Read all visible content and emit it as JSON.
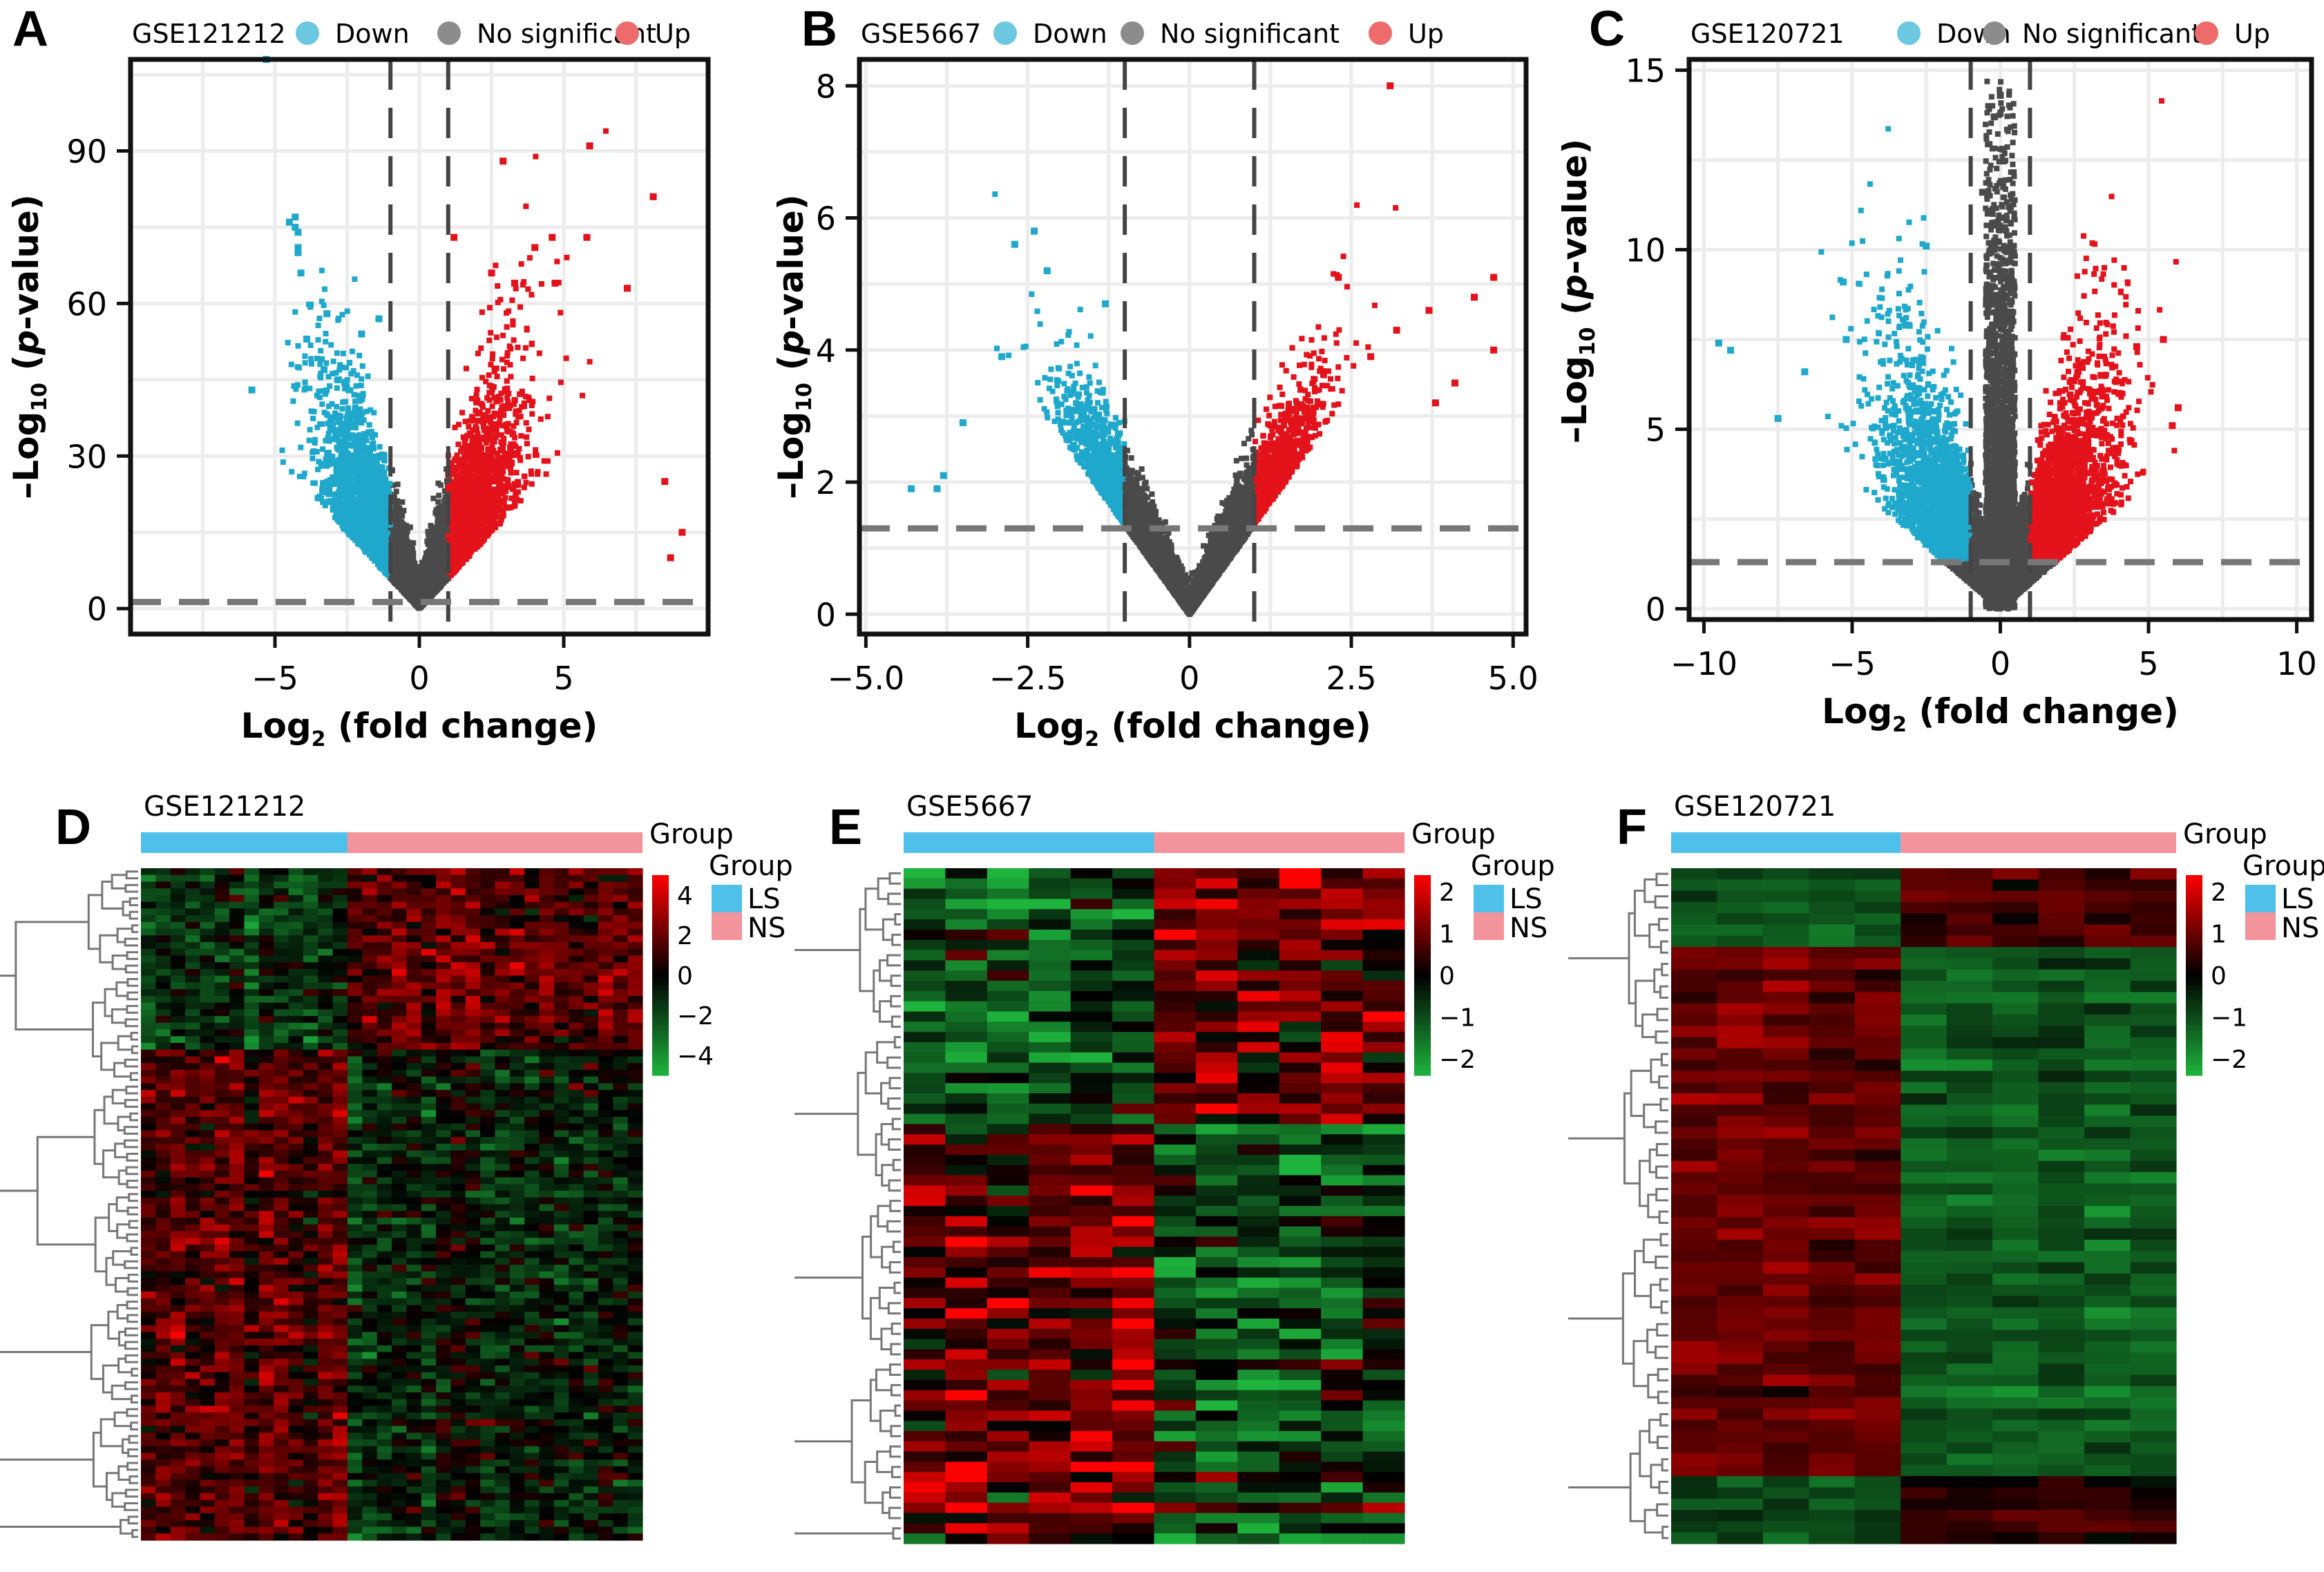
{
  "figure": {
    "panels": [
      "A",
      "B",
      "C",
      "D",
      "E",
      "F"
    ]
  },
  "legend_labels": {
    "down": "Down",
    "nosig": "No significant",
    "up": "Up"
  },
  "colors": {
    "down": "#1fa8cc",
    "nosig": "#4a4a4a",
    "up": "#e3121b",
    "legend_down": "#6cc7e0",
    "legend_nosig": "#8c8c8c",
    "legend_up": "#ee6b6b",
    "group_LS": "#4fc0ea",
    "group_NS": "#f3939c",
    "heat_high": "#ff0000",
    "heat_mid": "#000000",
    "heat_low": "#1db33c"
  },
  "chart_data": [
    {
      "id": "A",
      "type": "scatter",
      "title": "GSE121212",
      "xlabel": "Log2 (fold change)",
      "ylabel": "-Log10 (p-value)",
      "xlim": [
        -10,
        10
      ],
      "ylim": [
        -5,
        108
      ],
      "xticks": [
        -5,
        0,
        5
      ],
      "xtick_labels": [
        "−5",
        "0",
        "5"
      ],
      "yticks": [
        0,
        30,
        60,
        90
      ],
      "ytick_labels": [
        "0",
        "30",
        "60",
        "90"
      ],
      "grid": true,
      "legend": "top",
      "thresholds": {
        "logfc": [
          -1,
          1
        ],
        "neglog10p": 1.3
      },
      "series": [
        {
          "name": "Down",
          "points": [
            [
              -5.3,
              108
            ],
            [
              -4.3,
              77
            ],
            [
              -4.5,
              76
            ],
            [
              -4.3,
              75
            ],
            [
              -4.2,
              74
            ],
            [
              -4.2,
              71
            ],
            [
              -4.2,
              70
            ],
            [
              -4.1,
              66
            ],
            [
              -3.2,
              58
            ],
            [
              -1.4,
              57
            ],
            [
              -5.8,
              43
            ],
            [
              -3.9,
              53
            ],
            [
              -3.3,
              47
            ],
            [
              -2.8,
              45
            ],
            [
              -2.0,
              54
            ]
          ]
        },
        {
          "name": "No significant",
          "points": []
        },
        {
          "name": "Up",
          "points": [
            [
              5.9,
              91
            ],
            [
              2.9,
              88
            ],
            [
              8.1,
              81
            ],
            [
              1.2,
              73
            ],
            [
              4.6,
              73
            ],
            [
              5.8,
              73
            ],
            [
              4.0,
              71
            ],
            [
              2.5,
              66
            ],
            [
              3.3,
              64
            ],
            [
              4.7,
              64
            ],
            [
              7.2,
              63
            ],
            [
              8.5,
              25
            ],
            [
              9.1,
              15
            ],
            [
              8.7,
              10
            ]
          ]
        }
      ]
    },
    {
      "id": "B",
      "type": "scatter",
      "title": "GSE5667",
      "xlabel": "Log2 (fold change)",
      "ylabel": "-Log10 (p-value)",
      "xlim": [
        -5.1,
        5.2
      ],
      "ylim": [
        -0.3,
        8.4
      ],
      "xticks": [
        -5,
        -2.5,
        0,
        2.5,
        5
      ],
      "xtick_labels": [
        "−5.0",
        "−2.5",
        "0",
        "2.5",
        "5.0"
      ],
      "yticks": [
        0,
        2,
        4,
        6,
        8
      ],
      "ytick_labels": [
        "0",
        "2",
        "4",
        "6",
        "8"
      ],
      "grid": true,
      "legend": "top",
      "thresholds": {
        "logfc": [
          -1,
          1
        ],
        "neglog10p": 1.3
      },
      "series": [
        {
          "name": "Down",
          "points": [
            [
              -2.4,
              5.8
            ],
            [
              -2.7,
              5.6
            ],
            [
              -2.2,
              5.2
            ],
            [
              -1.3,
              4.7
            ],
            [
              -3.5,
              2.9
            ],
            [
              -4.3,
              1.9
            ],
            [
              -3.9,
              1.9
            ],
            [
              -3.8,
              2.1
            ],
            [
              -2.9,
              3.9
            ]
          ]
        },
        {
          "name": "No significant",
          "points": []
        },
        {
          "name": "Up",
          "points": [
            [
              3.1,
              8.0
            ],
            [
              4.7,
              5.1
            ],
            [
              4.4,
              4.8
            ],
            [
              2.3,
              5.1
            ],
            [
              3.7,
              4.6
            ],
            [
              4.7,
              4.0
            ],
            [
              3.2,
              4.3
            ],
            [
              2.8,
              3.9
            ],
            [
              3.8,
              3.2
            ],
            [
              4.1,
              3.5
            ]
          ]
        }
      ]
    },
    {
      "id": "C",
      "type": "scatter",
      "title": "GSE120721",
      "xlabel": "Log2 (fold change)",
      "ylabel": "-Log10 (p-value)",
      "xlim": [
        -10.5,
        10.5
      ],
      "ylim": [
        -0.3,
        15.3
      ],
      "xticks": [
        -10,
        -5,
        0,
        5,
        10
      ],
      "xtick_labels": [
        "−10",
        "−5",
        "0",
        "5",
        "10"
      ],
      "yticks": [
        0,
        5,
        10,
        15
      ],
      "ytick_labels": [
        "0",
        "5",
        "10",
        "15"
      ],
      "grid": true,
      "legend": "top",
      "thresholds": {
        "logfc": [
          -1,
          1
        ],
        "neglog10p": 1.3
      },
      "series": [
        {
          "name": "Down",
          "points": [
            [
              -9.5,
              7.4
            ],
            [
              -9.1,
              7.2
            ],
            [
              -2.5,
              10.1
            ],
            [
              -5.3,
              9.1
            ],
            [
              -6.6,
              6.6
            ],
            [
              -3.1,
              7.9
            ],
            [
              -5.2,
              7.5
            ],
            [
              -7.5,
              5.3
            ]
          ]
        },
        {
          "name": "No significant",
          "points": [
            [
              0,
              14.3
            ],
            [
              -0.2,
              13.7
            ],
            [
              0.1,
              12.8
            ],
            [
              -0.6,
              11.6
            ],
            [
              0.3,
              11.2
            ]
          ]
        },
        {
          "name": "Up",
          "points": [
            [
              5.5,
              7.5
            ],
            [
              4.6,
              7.3
            ],
            [
              6.0,
              5.6
            ],
            [
              5.8,
              5.1
            ],
            [
              3.4,
              6.5
            ],
            [
              4.0,
              6.0
            ]
          ]
        }
      ]
    },
    {
      "id": "D",
      "type": "heatmap",
      "title": "GSE121212",
      "annotation_title": "Group",
      "legend_title": "Group",
      "groups": [
        {
          "label": "LS",
          "n_columns": 14
        },
        {
          "label": "NS",
          "n_columns": 20
        }
      ],
      "n_rows": 100,
      "colorbar_ticks": [
        4,
        2,
        0,
        -2,
        -4
      ],
      "colorbar_tick_labels": [
        "4",
        "2",
        "0",
        "−2",
        "−4"
      ],
      "colorbar_range": [
        -5,
        5
      ],
      "blocks": [
        {
          "rows_fraction": [
            0,
            0.27
          ],
          "LS_mean": -1.2,
          "NS_mean": 1.6
        },
        {
          "rows_fraction": [
            0.27,
            1.0
          ],
          "LS_mean": 1.6,
          "NS_mean": -0.9
        }
      ]
    },
    {
      "id": "E",
      "type": "heatmap",
      "title": "GSE5667",
      "annotation_title": "Group",
      "legend_title": "Group",
      "groups": [
        {
          "label": "LS",
          "n_columns": 6
        },
        {
          "label": "NS",
          "n_columns": 6
        }
      ],
      "n_rows": 66,
      "colorbar_ticks": [
        2,
        1,
        0,
        -1,
        -2
      ],
      "colorbar_tick_labels": [
        "2",
        "1",
        "0",
        "−1",
        "−2"
      ],
      "colorbar_range": [
        -2.4,
        2.4
      ],
      "blocks": [
        {
          "rows_fraction": [
            0,
            0.38
          ],
          "LS_mean": -1.0,
          "NS_mean": 1.0
        },
        {
          "rows_fraction": [
            0.38,
            1.0
          ],
          "LS_mean": 0.9,
          "NS_mean": -0.9
        }
      ]
    },
    {
      "id": "F",
      "type": "heatmap",
      "title": "GSE120721",
      "annotation_title": "Group",
      "legend_title": "Group",
      "groups": [
        {
          "label": "LS",
          "n_columns": 5
        },
        {
          "label": "NS",
          "n_columns": 6
        }
      ],
      "n_rows": 60,
      "colorbar_ticks": [
        2,
        1,
        0,
        -1,
        -2
      ],
      "colorbar_tick_labels": [
        "2",
        "1",
        "0",
        "−1",
        "−2"
      ],
      "colorbar_range": [
        -2.4,
        2.4
      ],
      "blocks": [
        {
          "rows_fraction": [
            0,
            0.11
          ],
          "LS_mean": -1.3,
          "NS_mean": 0.6
        },
        {
          "rows_fraction": [
            0.11,
            0.9
          ],
          "LS_mean": 0.9,
          "NS_mean": -1.2
        },
        {
          "rows_fraction": [
            0.9,
            1.0
          ],
          "LS_mean": -1.0,
          "NS_mean": 0.3
        }
      ]
    }
  ]
}
